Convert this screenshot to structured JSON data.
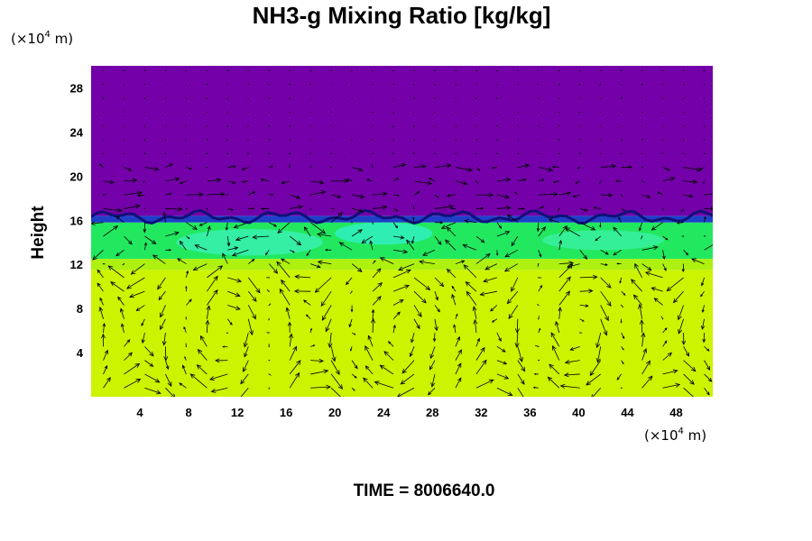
{
  "chart_data": {
    "type": "heatmap",
    "title": "NH3-g Mixing Ratio [kg/kg]",
    "xlabel": "",
    "ylabel": "Height",
    "x_unit_text": "(×10",
    "x_unit_exp": "4",
    "x_unit_tail": " m)",
    "y_unit_text": "(×10",
    "y_unit_exp": "4",
    "y_unit_tail": " m)",
    "xlim": [
      0,
      51
    ],
    "ylim": [
      0,
      30
    ],
    "x_ticks": [
      {
        "value": 4,
        "label": "4"
      },
      {
        "value": 8,
        "label": "8"
      },
      {
        "value": 12,
        "label": "12"
      },
      {
        "value": 16,
        "label": "16"
      },
      {
        "value": 20,
        "label": "20"
      },
      {
        "value": 24,
        "label": "24"
      },
      {
        "value": 28,
        "label": "28"
      },
      {
        "value": 32,
        "label": "32"
      },
      {
        "value": 36,
        "label": "36"
      },
      {
        "value": 40,
        "label": "40"
      },
      {
        "value": 44,
        "label": "44"
      },
      {
        "value": 48,
        "label": "48"
      }
    ],
    "y_ticks": [
      {
        "value": 4,
        "label": "4"
      },
      {
        "value": 8,
        "label": "8"
      },
      {
        "value": 12,
        "label": "12"
      },
      {
        "value": 16,
        "label": "16"
      },
      {
        "value": 20,
        "label": "20"
      },
      {
        "value": 24,
        "label": "24"
      },
      {
        "value": 28,
        "label": "28"
      }
    ],
    "layers": [
      {
        "from": 0,
        "to": 11.5,
        "color": "#ccf300"
      },
      {
        "from": 11.5,
        "to": 12.5,
        "color": "#aef010"
      },
      {
        "from": 12.5,
        "to": 15.8,
        "color": "#22e860"
      },
      {
        "from": 15.8,
        "to": 16.4,
        "color": "#1e40c8"
      },
      {
        "from": 16.4,
        "to": 30,
        "color": "#7300a8"
      }
    ],
    "patches": [
      {
        "x": 13,
        "y": 14.0,
        "rx": 6,
        "ry": 1.2,
        "color": "#38f0b0"
      },
      {
        "x": 24,
        "y": 14.8,
        "rx": 4,
        "ry": 1.0,
        "color": "#30f0c0"
      },
      {
        "x": 42,
        "y": 14.2,
        "rx": 5,
        "ry": 0.9,
        "color": "#38f0a0"
      }
    ],
    "vector_field": "wind",
    "grid": false,
    "legend": "none"
  },
  "time_label": "TIME = 8006640.0"
}
